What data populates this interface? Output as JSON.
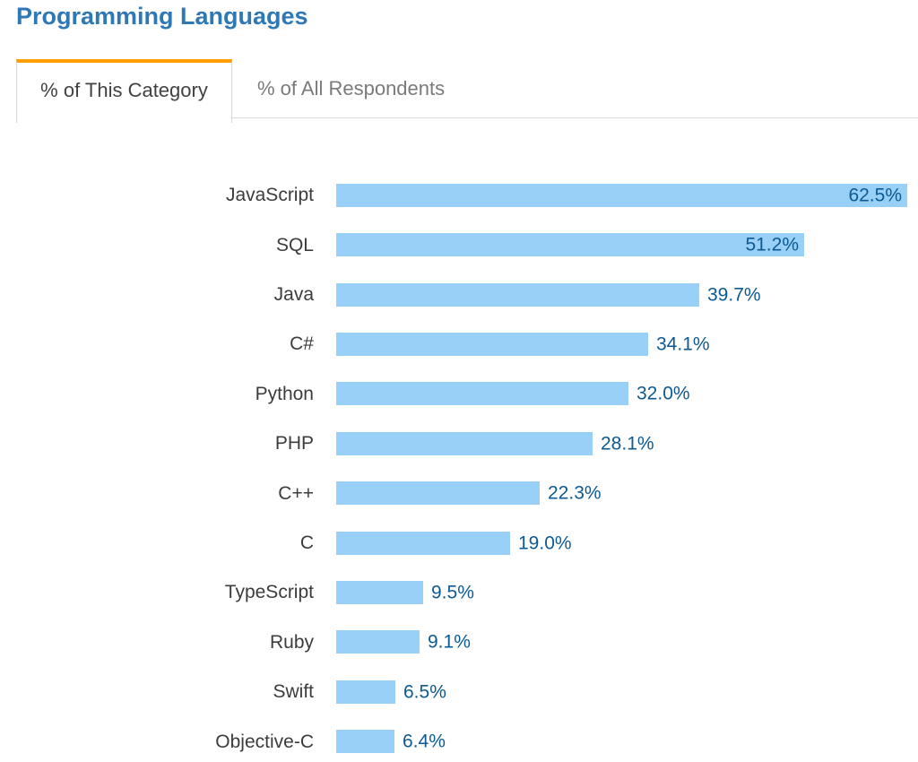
{
  "page": {
    "title": "Programming Languages"
  },
  "tabs": [
    {
      "label": "% of This Category",
      "active": true
    },
    {
      "label": "% of All Respondents",
      "active": false
    }
  ],
  "chart_data": {
    "type": "bar",
    "orientation": "horizontal",
    "title": "Programming Languages",
    "categories": [
      "JavaScript",
      "SQL",
      "Java",
      "C#",
      "Python",
      "PHP",
      "C++",
      "C",
      "TypeScript",
      "Ruby",
      "Swift",
      "Objective-C"
    ],
    "values": [
      62.5,
      51.2,
      39.7,
      34.1,
      32.0,
      28.1,
      22.3,
      19.0,
      9.5,
      9.1,
      6.5,
      6.4
    ],
    "value_labels": [
      "62.5%",
      "51.2%",
      "39.7%",
      "34.1%",
      "32.0%",
      "28.1%",
      "22.3%",
      "19.0%",
      "9.5%",
      "9.1%",
      "6.5%",
      "6.4%"
    ],
    "value_suffix": "%",
    "xlim": [
      0,
      62.5
    ],
    "grid": false,
    "legend": false,
    "axis_visible": false,
    "labels_inside_bar": [
      true,
      true,
      false,
      false,
      false,
      false,
      false,
      false,
      false,
      false,
      false,
      false
    ],
    "bar_color": "#99d0f7",
    "value_label_color": "#0d5a93"
  },
  "colors": {
    "title_blue": "#2e78b6",
    "accent_orange": "#ff9e00",
    "bar_blue": "#99d0f7",
    "value_blue": "#0d5a93",
    "tab_border": "#d8d8d8",
    "tab_active_text": "#424242",
    "tab_inactive_text": "#7a7a7a",
    "category_text": "#3c3c3c"
  }
}
